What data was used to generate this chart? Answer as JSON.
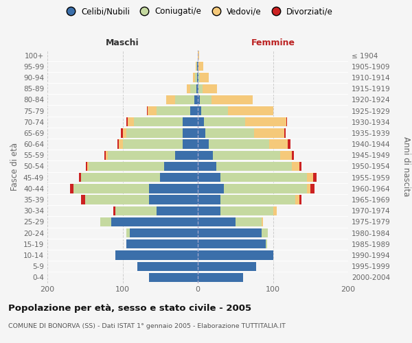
{
  "age_groups": [
    "0-4",
    "5-9",
    "10-14",
    "15-19",
    "20-24",
    "25-29",
    "30-34",
    "35-39",
    "40-44",
    "45-49",
    "50-54",
    "55-59",
    "60-64",
    "65-69",
    "70-74",
    "75-79",
    "80-84",
    "85-89",
    "90-94",
    "95-99",
    "100+"
  ],
  "birth_years": [
    "2000-2004",
    "1995-1999",
    "1990-1994",
    "1985-1989",
    "1980-1984",
    "1975-1979",
    "1970-1974",
    "1965-1969",
    "1960-1964",
    "1955-1959",
    "1950-1954",
    "1945-1949",
    "1940-1944",
    "1935-1939",
    "1930-1934",
    "1925-1929",
    "1920-1924",
    "1915-1919",
    "1910-1914",
    "1905-1909",
    "≤ 1904"
  ],
  "males": {
    "celibe": [
      65,
      80,
      110,
      95,
      90,
      115,
      55,
      65,
      65,
      50,
      45,
      30,
      20,
      20,
      20,
      10,
      5,
      2,
      1,
      1,
      0
    ],
    "coniugato": [
      0,
      0,
      0,
      0,
      5,
      15,
      55,
      85,
      100,
      105,
      100,
      90,
      80,
      75,
      65,
      45,
      25,
      8,
      3,
      1,
      0
    ],
    "vedovo": [
      0,
      0,
      0,
      0,
      0,
      0,
      0,
      0,
      0,
      0,
      2,
      2,
      5,
      5,
      8,
      12,
      12,
      5,
      2,
      1,
      0
    ],
    "divorziato": [
      0,
      0,
      0,
      0,
      0,
      0,
      2,
      5,
      5,
      3,
      2,
      2,
      2,
      2,
      2,
      1,
      0,
      0,
      0,
      0,
      0
    ]
  },
  "females": {
    "nubile": [
      60,
      78,
      100,
      90,
      85,
      50,
      30,
      30,
      35,
      30,
      25,
      20,
      15,
      10,
      8,
      5,
      3,
      1,
      1,
      1,
      0
    ],
    "coniugata": [
      0,
      0,
      0,
      2,
      8,
      35,
      70,
      100,
      110,
      115,
      100,
      90,
      80,
      65,
      55,
      35,
      15,
      5,
      2,
      0,
      0
    ],
    "vedova": [
      0,
      0,
      0,
      0,
      0,
      2,
      5,
      5,
      5,
      8,
      10,
      15,
      25,
      40,
      55,
      60,
      55,
      20,
      12,
      6,
      2
    ],
    "divorziata": [
      0,
      0,
      0,
      0,
      0,
      0,
      0,
      3,
      5,
      5,
      3,
      3,
      3,
      2,
      1,
      0,
      0,
      0,
      0,
      0,
      0
    ]
  },
  "colors": {
    "celibe": "#3b6faa",
    "coniugato": "#c5d9a0",
    "vedovo": "#f5c97a",
    "divorziato": "#cc2222"
  },
  "xlim": 200,
  "title": "Popolazione per età, sesso e stato civile - 2005",
  "subtitle": "COMUNE DI BONORVA (SS) - Dati ISTAT 1° gennaio 2005 - Elaborazione TUTTITALIA.IT",
  "ylabel_left": "Fasce di età",
  "ylabel_right": "Anni di nascita",
  "xlabel_maschi": "Maschi",
  "xlabel_femmine": "Femmine",
  "legend_labels": [
    "Celibi/Nubili",
    "Coniugati/e",
    "Vedovi/e",
    "Divorziati/e"
  ],
  "bg_color": "#f5f5f5",
  "grid_color": "#cccccc",
  "bar_height": 0.82
}
